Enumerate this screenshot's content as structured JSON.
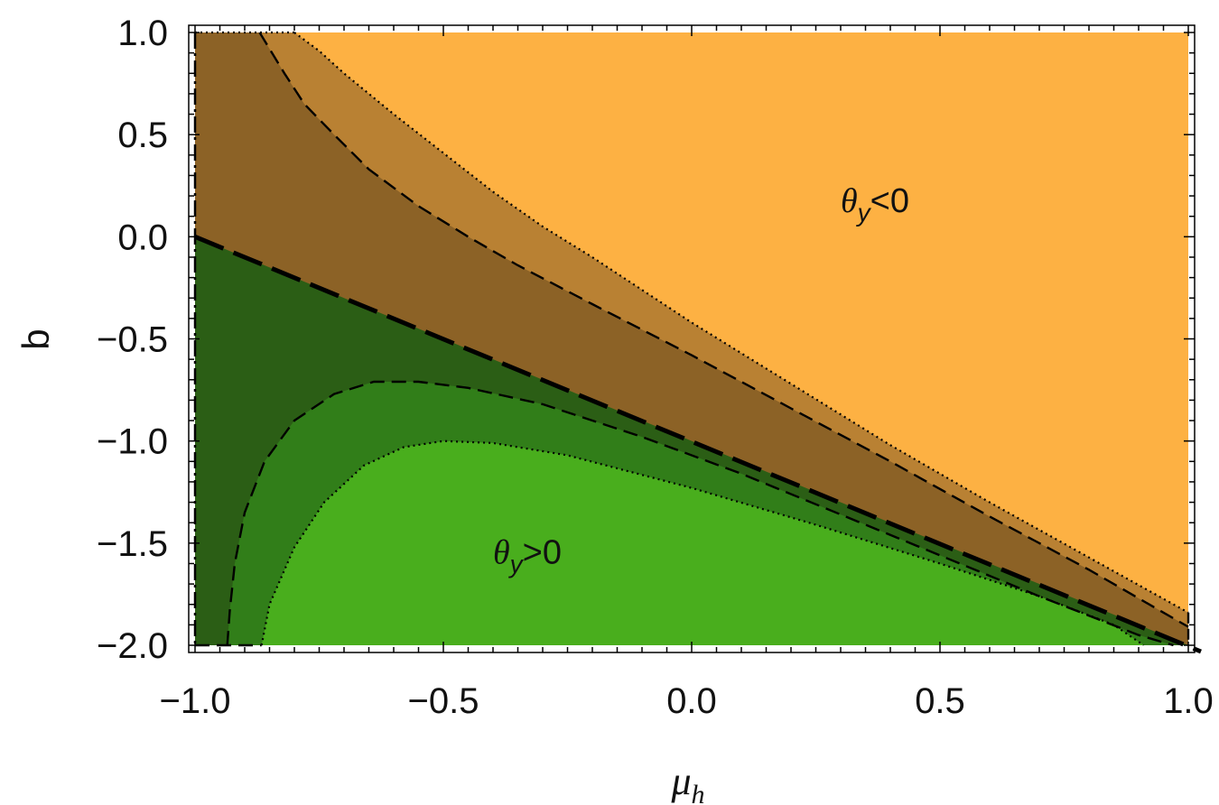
{
  "chart_data": {
    "type": "contour",
    "xlabel": "μ",
    "xlabel_sub": "h",
    "ylabel": "b",
    "xlim": [
      -1.0,
      1.0
    ],
    "ylim": [
      -2.0,
      1.0
    ],
    "x_ticks": [
      -1.0,
      -0.5,
      0.0,
      0.5,
      1.0
    ],
    "x_tick_labels": [
      "−1.0",
      "−0.5",
      "0.0",
      "0.5",
      "1.0"
    ],
    "y_ticks": [
      1.0,
      0.5,
      0.0,
      -0.5,
      -1.0,
      -1.5,
      -2.0
    ],
    "y_tick_labels": [
      "1.0",
      "0.5",
      "0.0",
      "−0.5",
      "−1.0",
      "−1.5",
      "−2.0"
    ],
    "grid": false,
    "colors": {
      "orange_light": "#FDB143",
      "orange_mid": "#B98133",
      "orange_dark": "#8C6226",
      "green_dark": "#2B5E15",
      "green_mid": "#317E19",
      "green_light": "#49AE1D"
    },
    "boundary": {
      "description": "b = -(1 + mu_h)",
      "x": [
        -1.0,
        1.0
      ],
      "y": [
        0.0,
        -2.0
      ],
      "style": "thick-dashed"
    },
    "orange_contours": [
      {
        "style": "dashed",
        "x": [
          -0.87,
          -0.85,
          -0.82,
          -0.78,
          -0.72,
          -0.65,
          -0.55,
          -0.45,
          -0.35,
          -0.2,
          0.0,
          0.2,
          0.4,
          0.6,
          0.8,
          0.95,
          1.0
        ],
        "y": [
          1.0,
          0.92,
          0.8,
          0.65,
          0.5,
          0.33,
          0.15,
          0.0,
          -0.14,
          -0.33,
          -0.58,
          -0.84,
          -1.1,
          -1.37,
          -1.63,
          -1.84,
          -1.91
        ]
      },
      {
        "style": "dotted",
        "x": [
          -0.8,
          -0.75,
          -0.7,
          -0.6,
          -0.5,
          -0.4,
          -0.3,
          -0.2,
          0.0,
          0.2,
          0.4,
          0.6,
          0.8,
          1.0
        ],
        "y": [
          1.0,
          0.91,
          0.8,
          0.6,
          0.41,
          0.22,
          0.05,
          -0.1,
          -0.42,
          -0.72,
          -1.02,
          -1.3,
          -1.57,
          -1.84
        ]
      }
    ],
    "green_contours": [
      {
        "style": "dashed",
        "x": [
          -0.935,
          -0.93,
          -0.92,
          -0.9,
          -0.86,
          -0.8,
          -0.72,
          -0.64,
          -0.55,
          -0.45,
          -0.3,
          -0.1,
          0.1,
          0.3,
          0.5,
          0.7,
          0.9,
          0.97
        ],
        "y": [
          -2.0,
          -1.83,
          -1.6,
          -1.35,
          -1.1,
          -0.9,
          -0.77,
          -0.71,
          -0.71,
          -0.74,
          -0.82,
          -0.98,
          -1.16,
          -1.36,
          -1.56,
          -1.76,
          -1.95,
          -2.0
        ]
      },
      {
        "style": "dotted",
        "x": [
          -0.866,
          -0.85,
          -0.8,
          -0.74,
          -0.66,
          -0.58,
          -0.5,
          -0.4,
          -0.25,
          0.0,
          0.25,
          0.5,
          0.7,
          0.85,
          0.91
        ],
        "y": [
          -2.0,
          -1.8,
          -1.52,
          -1.3,
          -1.12,
          -1.03,
          -1.0,
          -1.01,
          -1.07,
          -1.23,
          -1.41,
          -1.6,
          -1.76,
          -1.9,
          -2.0
        ]
      }
    ],
    "annotations": [
      {
        "text_main": "θ",
        "text_sub": "y",
        "text_rest": "<0",
        "x": 0.3,
        "y": 0.12
      },
      {
        "text_main": "θ",
        "text_sub": "y",
        "text_rest": ">0",
        "x": -0.4,
        "y": -1.6
      }
    ]
  }
}
